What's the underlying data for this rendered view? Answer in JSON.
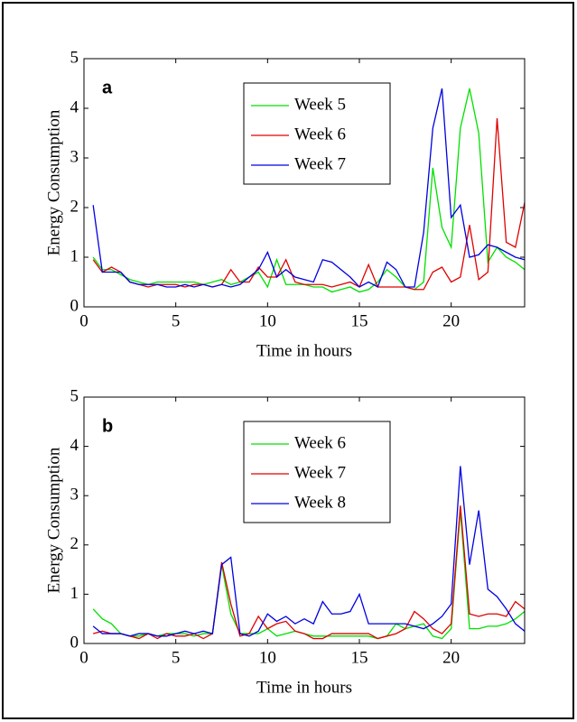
{
  "chart_data": [
    {
      "type": "line",
      "panel_label": "a",
      "xlabel": "Time in hours",
      "ylabel": "Energy Consumption",
      "x": [
        0.5,
        1,
        1.5,
        2,
        2.5,
        3,
        3.5,
        4,
        4.5,
        5,
        5.5,
        6,
        6.5,
        7,
        7.5,
        8,
        8.5,
        9,
        9.5,
        10,
        10.5,
        11,
        11.5,
        12,
        12.5,
        13,
        13.5,
        14,
        14.5,
        15,
        15.5,
        16,
        16.5,
        17,
        17.5,
        18,
        18.5,
        19,
        19.5,
        20,
        20.5,
        21,
        21.5,
        22,
        22.5,
        23,
        23.5,
        24
      ],
      "series": [
        {
          "name": "Week 5",
          "color": "#00e000",
          "values": [
            1.0,
            0.75,
            0.75,
            0.65,
            0.55,
            0.5,
            0.45,
            0.5,
            0.5,
            0.5,
            0.5,
            0.5,
            0.45,
            0.5,
            0.55,
            0.45,
            0.5,
            0.6,
            0.7,
            0.4,
            0.95,
            0.45,
            0.45,
            0.45,
            0.4,
            0.4,
            0.3,
            0.35,
            0.4,
            0.3,
            0.35,
            0.5,
            0.75,
            0.6,
            0.4,
            0.35,
            0.5,
            2.8,
            1.6,
            1.2,
            3.6,
            4.4,
            3.5,
            0.9,
            1.2,
            1.0,
            0.9,
            0.75
          ]
        },
        {
          "name": "Week 6",
          "color": "#e00000",
          "values": [
            0.95,
            0.7,
            0.8,
            0.7,
            0.5,
            0.45,
            0.4,
            0.45,
            0.45,
            0.45,
            0.4,
            0.45,
            0.45,
            0.4,
            0.45,
            0.75,
            0.5,
            0.5,
            0.8,
            0.6,
            0.6,
            0.95,
            0.5,
            0.45,
            0.45,
            0.45,
            0.4,
            0.45,
            0.5,
            0.4,
            0.85,
            0.4,
            0.4,
            0.4,
            0.4,
            0.35,
            0.35,
            0.7,
            0.8,
            0.5,
            0.6,
            1.65,
            0.55,
            0.7,
            3.8,
            1.3,
            1.2,
            2.1
          ]
        },
        {
          "name": "Week 7",
          "color": "#0000e0",
          "values": [
            2.05,
            0.7,
            0.7,
            0.7,
            0.5,
            0.45,
            0.45,
            0.45,
            0.4,
            0.4,
            0.45,
            0.4,
            0.45,
            0.4,
            0.45,
            0.4,
            0.45,
            0.6,
            0.75,
            1.1,
            0.6,
            0.75,
            0.6,
            0.55,
            0.5,
            0.95,
            0.9,
            0.75,
            0.6,
            0.4,
            0.5,
            0.4,
            0.9,
            0.75,
            0.4,
            0.4,
            1.5,
            3.6,
            4.4,
            1.8,
            2.05,
            1.0,
            1.05,
            1.25,
            1.2,
            1.1,
            1.0,
            0.95
          ]
        }
      ],
      "xlim": [
        0,
        24
      ],
      "xticks": [
        0,
        5,
        10,
        15,
        20
      ],
      "ylim": [
        0,
        5
      ],
      "yticks": [
        0,
        1,
        2,
        3,
        4,
        5
      ],
      "legend": "upper center"
    },
    {
      "type": "line",
      "panel_label": "b",
      "xlabel": "Time in hours",
      "ylabel": "Energy Consumption",
      "x": [
        0.5,
        1,
        1.5,
        2,
        2.5,
        3,
        3.5,
        4,
        4.5,
        5,
        5.5,
        6,
        6.5,
        7,
        7.5,
        8,
        8.5,
        9,
        9.5,
        10,
        10.5,
        11,
        11.5,
        12,
        12.5,
        13,
        13.5,
        14,
        14.5,
        15,
        15.5,
        16,
        16.5,
        17,
        17.5,
        18,
        18.5,
        19,
        19.5,
        20,
        20.5,
        21,
        21.5,
        22,
        22.5,
        23,
        23.5,
        24
      ],
      "series": [
        {
          "name": "Week 6",
          "color": "#00e000",
          "values": [
            0.7,
            0.5,
            0.4,
            0.2,
            0.15,
            0.15,
            0.2,
            0.15,
            0.2,
            0.2,
            0.2,
            0.15,
            0.2,
            0.2,
            1.6,
            0.6,
            0.2,
            0.2,
            0.2,
            0.3,
            0.15,
            0.2,
            0.25,
            0.2,
            0.15,
            0.15,
            0.15,
            0.15,
            0.15,
            0.15,
            0.15,
            0.1,
            0.15,
            0.4,
            0.3,
            0.35,
            0.4,
            0.15,
            0.1,
            0.3,
            2.7,
            0.3,
            0.3,
            0.35,
            0.35,
            0.4,
            0.5,
            0.65
          ]
        },
        {
          "name": "Week 7",
          "color": "#e00000",
          "values": [
            0.2,
            0.25,
            0.2,
            0.2,
            0.15,
            0.1,
            0.2,
            0.1,
            0.2,
            0.15,
            0.15,
            0.2,
            0.1,
            0.2,
            1.65,
            0.8,
            0.15,
            0.2,
            0.55,
            0.3,
            0.4,
            0.45,
            0.25,
            0.2,
            0.1,
            0.1,
            0.2,
            0.2,
            0.2,
            0.2,
            0.2,
            0.1,
            0.15,
            0.2,
            0.3,
            0.65,
            0.5,
            0.3,
            0.2,
            0.4,
            2.8,
            0.6,
            0.55,
            0.6,
            0.6,
            0.55,
            0.85,
            0.7
          ]
        },
        {
          "name": "Week 8",
          "color": "#0000e0",
          "values": [
            0.35,
            0.2,
            0.2,
            0.2,
            0.15,
            0.2,
            0.2,
            0.15,
            0.15,
            0.2,
            0.25,
            0.2,
            0.25,
            0.2,
            1.6,
            1.75,
            0.2,
            0.15,
            0.25,
            0.6,
            0.45,
            0.55,
            0.4,
            0.5,
            0.4,
            0.85,
            0.6,
            0.6,
            0.65,
            1.0,
            0.4,
            0.4,
            0.4,
            0.4,
            0.4,
            0.35,
            0.3,
            0.4,
            0.55,
            0.8,
            3.6,
            1.6,
            2.7,
            1.1,
            0.95,
            0.7,
            0.4,
            0.25
          ]
        }
      ],
      "xlim": [
        0,
        24
      ],
      "xticks": [
        0,
        5,
        10,
        15,
        20
      ],
      "ylim": [
        0,
        5
      ],
      "yticks": [
        0,
        1,
        2,
        3,
        4,
        5
      ],
      "legend": "upper center"
    }
  ]
}
